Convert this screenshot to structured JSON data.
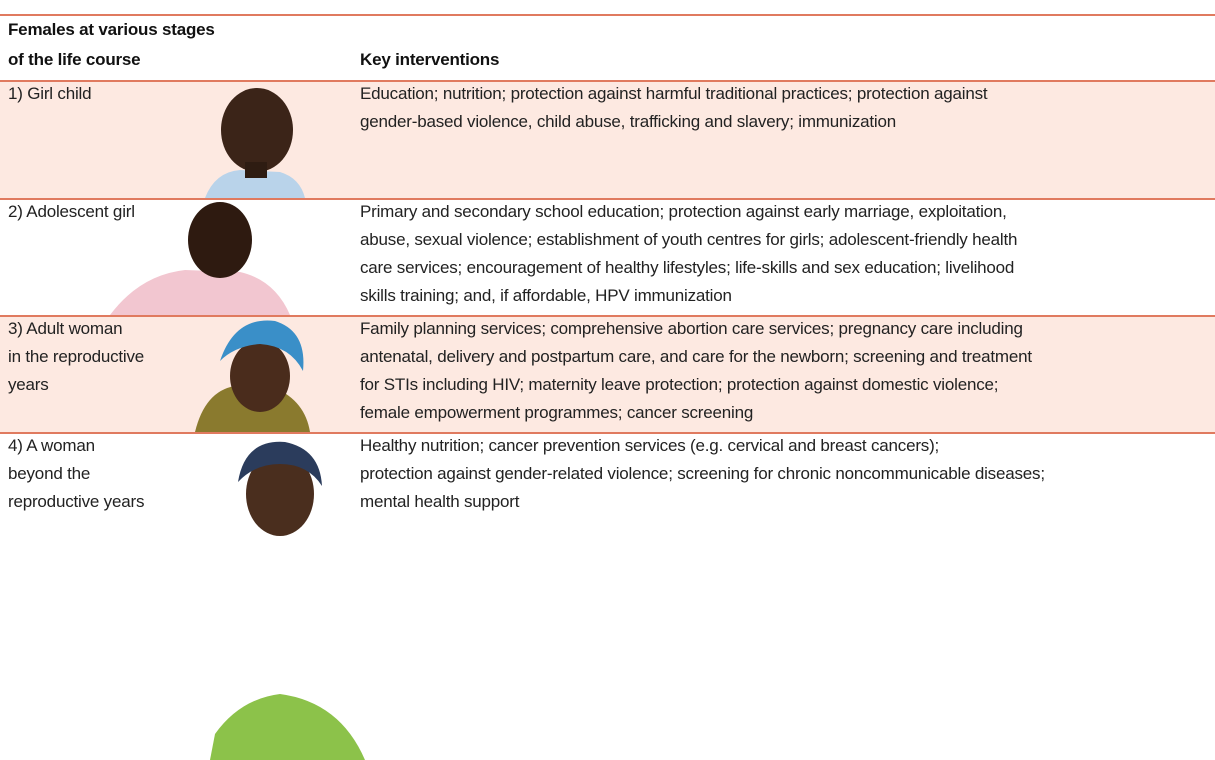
{
  "table": {
    "header": {
      "stage": [
        "Females at various stages",
        "of the life course"
      ],
      "interventions": [
        "Key interventions"
      ]
    },
    "rows": [
      {
        "stage": [
          "1) Girl child"
        ],
        "interventions": [
          "Education; nutrition; protection against harmful traditional practices; protection against",
          "gender-based violence, child abuse, trafficking and slavery; immunization"
        ]
      },
      {
        "stage": [
          "2) Adolescent girl"
        ],
        "interventions": [
          "Primary and secondary school education; protection against early marriage, exploitation,",
          "abuse, sexual violence; establishment of youth centres for girls; adolescent-friendly health",
          "care services; encouragement of healthy lifestyles; life-skills and sex education; livelihood",
          "skills training; and, if affordable, HPV immunization"
        ]
      },
      {
        "stage": [
          "3) Adult woman",
          "in the reproductive",
          "years"
        ],
        "interventions": [
          "Family planning services; comprehensive abortion care services; pregnancy care including",
          "antenatal, delivery and postpartum care, and care for the newborn; screening and treatment",
          "for STIs including HIV; maternity leave protection; protection against domestic violence;",
          "female empowerment programmes; cancer screening"
        ]
      },
      {
        "stage": [
          "4) A woman",
          "beyond the",
          "reproductive years"
        ],
        "interventions": [
          "Healthy nutrition; cancer prevention services (e.g. cervical and breast cancers);",
          "protection against gender-related violence; screening for chronic noncommunicable diseases;",
          "mental health support"
        ]
      }
    ]
  }
}
